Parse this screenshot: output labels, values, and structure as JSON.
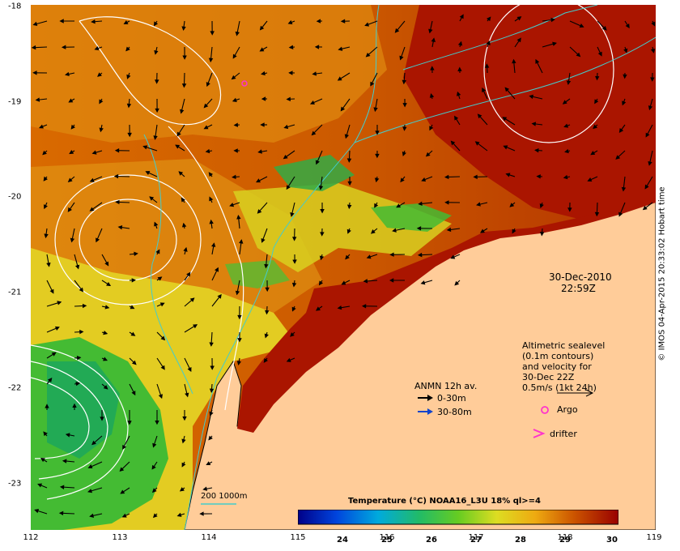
{
  "date_label": "30-Dec-2010",
  "time_label": "22:59Z",
  "altimetric": {
    "line1": "Altimetric sealevel",
    "line2": "(0.1m contours)",
    "line3": "and velocity for",
    "line4": "30-Dec 22Z",
    "line5": "0.5m/s (1kt 24h)"
  },
  "anmn": {
    "title": "ANMN 12h av.",
    "item1": "0-30m",
    "item2": "30-80m"
  },
  "argo_label": "Argo",
  "drifter_label": "drifter",
  "isobath_label": "200  1000m",
  "colorbar": {
    "title": "Temperature (°C) NOAA16_L3U 18% ql>=4",
    "ticks": [
      "24",
      "25",
      "26",
      "27",
      "28",
      "29",
      "30"
    ]
  },
  "credit": "© IMOS 04-Apr-2015 20:33:02 Hobart time",
  "axes": {
    "x_ticks": [
      "112",
      "113",
      "114",
      "115",
      "116",
      "117",
      "118",
      "119"
    ],
    "y_ticks": [
      "-18",
      "-19",
      "-20",
      "-21",
      "-22",
      "-23"
    ]
  },
  "colors": {
    "land": "#ffcc99",
    "warm_sea": "#cc5500",
    "hot_sea": "#aa1100",
    "mid_sea": "#e08000",
    "cool_sea": "#dddd22",
    "cold_sea": "#44bb33",
    "isobath": "#44cccc",
    "contour": "#ffffff",
    "argo": "#ff33cc"
  }
}
